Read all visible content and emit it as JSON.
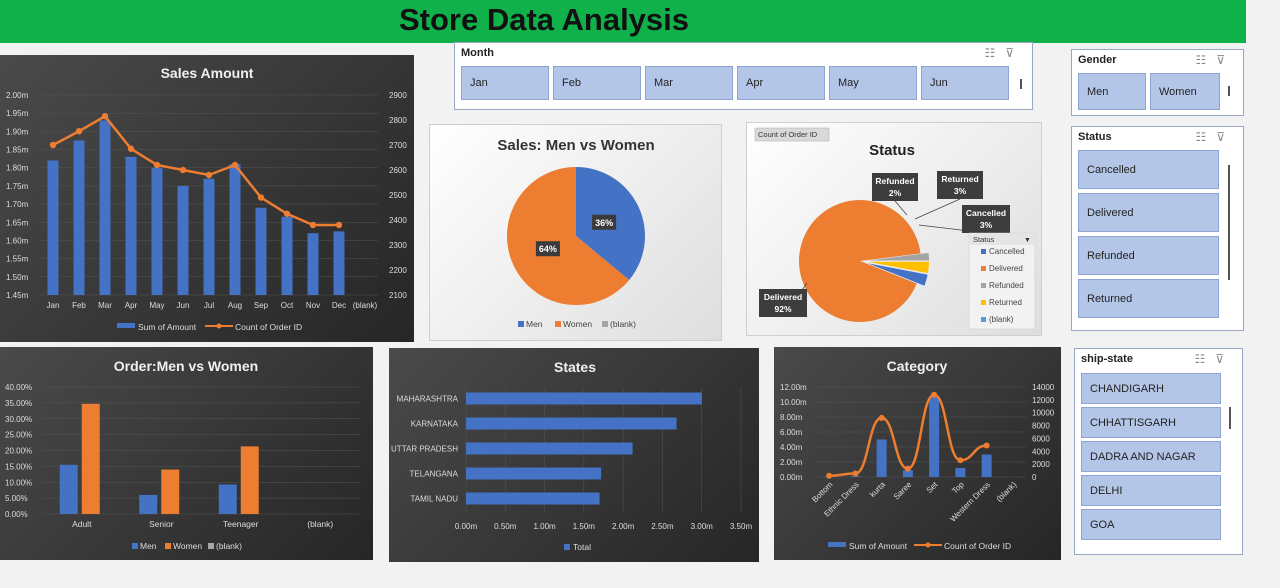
{
  "header": {
    "title": "Store Data Analysis"
  },
  "slicers": {
    "month": {
      "title": "Month",
      "items": [
        "Jan",
        "Feb",
        "Mar",
        "Apr",
        "May",
        "Jun"
      ]
    },
    "gender": {
      "title": "Gender",
      "items": [
        "Men",
        "Women"
      ]
    },
    "status": {
      "title": "Status",
      "items": [
        "Cancelled",
        "Delivered",
        "Refunded",
        "Returned"
      ]
    },
    "ship_state": {
      "title": "ship-state",
      "items": [
        "CHANDIGARH",
        "CHHATTISGARH",
        "DADRA AND NAGAR",
        "DELHI",
        "GOA"
      ]
    }
  },
  "icons": {
    "multiselect": "multi-select-icon",
    "clear_filter": "clear-filter-icon"
  },
  "colors": {
    "blue": "#4472c4",
    "orange": "#ed7d31",
    "gray": "#a5a5a5",
    "yellow": "#ffc000",
    "lightblue": "#5b9bd5",
    "green": "#10b14b"
  },
  "chart_data": [
    {
      "id": "sales_amount",
      "type": "bar+line",
      "title": "Sales Amount",
      "categories": [
        "Jan",
        "Feb",
        "Mar",
        "Apr",
        "May",
        "Jun",
        "Jul",
        "Aug",
        "Sep",
        "Oct",
        "Nov",
        "Dec",
        "(blank)"
      ],
      "series": [
        {
          "name": "Sum of Amount",
          "type": "bar",
          "axis": "left",
          "values": [
            1.82,
            1.875,
            1.93,
            1.83,
            1.8,
            1.75,
            1.77,
            1.81,
            1.69,
            1.665,
            1.62,
            1.625,
            null
          ]
        },
        {
          "name": "Count of Order ID",
          "type": "line",
          "axis": "right",
          "values": [
            2700,
            2755,
            2815,
            2685,
            2620,
            2600,
            2580,
            2620,
            2490,
            2425,
            2380,
            2380,
            null
          ]
        }
      ],
      "left_axis": {
        "min": 1.45,
        "max": 2.0,
        "ticks": [
          "2.00m",
          "1.95m",
          "1.90m",
          "1.85m",
          "1.80m",
          "1.75m",
          "1.70m",
          "1.65m",
          "1.60m",
          "1.55m",
          "1.50m",
          "1.45m"
        ]
      },
      "right_axis": {
        "min": 2100,
        "max": 2900,
        "ticks": [
          "2900",
          "2800",
          "2700",
          "2600",
          "2500",
          "2400",
          "2300",
          "2200",
          "2100"
        ]
      },
      "legend": "bottom"
    },
    {
      "id": "sales_men_women",
      "type": "pie",
      "title": "Sales: Men vs Women",
      "slices": [
        {
          "name": "Men",
          "value": 36,
          "label": "36%"
        },
        {
          "name": "Women",
          "value": 64,
          "label": "64%"
        }
      ],
      "legend_entries": [
        "Men",
        "Women",
        "(blank)"
      ],
      "legend": "bottom"
    },
    {
      "id": "status",
      "type": "pie",
      "title": "Status",
      "field_button": "Count of Order ID",
      "slices": [
        {
          "name": "Cancelled",
          "value": 3,
          "label": "Cancelled",
          "pct": "3%"
        },
        {
          "name": "Delivered",
          "value": 92,
          "label": "Delivered",
          "pct": "92%"
        },
        {
          "name": "Refunded",
          "value": 2,
          "label": "Refunded",
          "pct": "2%"
        },
        {
          "name": "Returned",
          "value": 3,
          "label": "Returned",
          "pct": "3%"
        }
      ],
      "legend_title": "Status",
      "legend_entries": [
        "Cancelled",
        "Delivered",
        "Refunded",
        "Returned",
        "(blank)"
      ],
      "legend": "right"
    },
    {
      "id": "order_men_women",
      "type": "bar",
      "title": "Order:Men vs Women",
      "categories": [
        "Adult",
        "Senior",
        "Teenager",
        "(blank)"
      ],
      "series": [
        {
          "name": "Men",
          "values": [
            15.5,
            6.0,
            9.3,
            null
          ]
        },
        {
          "name": "Women",
          "values": [
            34.7,
            14.0,
            21.3,
            null
          ]
        }
      ],
      "legend_entries": [
        "Men",
        "Women",
        "(blank)"
      ],
      "ylim": [
        0,
        40
      ],
      "ticks": [
        "40.00%",
        "35.00%",
        "30.00%",
        "25.00%",
        "20.00%",
        "15.00%",
        "10.00%",
        "5.00%",
        "0.00%"
      ],
      "legend": "bottom"
    },
    {
      "id": "states",
      "type": "bar",
      "orientation": "horizontal",
      "title": "States",
      "categories": [
        "MAHARASHTRA",
        "KARNATAKA",
        "UTTAR PRADESH",
        "TELANGANA",
        "TAMIL NADU"
      ],
      "series": [
        {
          "name": "Total",
          "values": [
            3.0,
            2.68,
            2.12,
            1.72,
            1.7
          ]
        }
      ],
      "xlim": [
        0,
        3.5
      ],
      "ticks": [
        "0.00m",
        "0.50m",
        "1.00m",
        "1.50m",
        "2.00m",
        "2.50m",
        "3.00m",
        "3.50m"
      ],
      "legend": "bottom"
    },
    {
      "id": "category",
      "type": "bar+line",
      "title": "Category",
      "categories": [
        "Bottom",
        "Ethnic Dress",
        "kurta",
        "Saree",
        "Set",
        "Top",
        "Western Dress",
        "(blank)"
      ],
      "series": [
        {
          "name": "Sum of Amount",
          "type": "bar",
          "axis": "left",
          "values": [
            0.05,
            0.1,
            5.0,
            0.9,
            10.7,
            1.2,
            3.0,
            null
          ]
        },
        {
          "name": "Count of Order ID",
          "type": "line",
          "axis": "right",
          "values": [
            200,
            550,
            9200,
            1300,
            12800,
            2600,
            4900,
            null
          ]
        }
      ],
      "left_axis": {
        "min": 0,
        "max": 12,
        "ticks": [
          "12.00m",
          "10.00m",
          "8.00m",
          "6.00m",
          "4.00m",
          "2.00m",
          "0.00m"
        ]
      },
      "right_axis": {
        "min": 0,
        "max": 14000,
        "ticks": [
          "14000",
          "12000",
          "10000",
          "8000",
          "6000",
          "4000",
          "2000",
          "0"
        ]
      },
      "legend": "bottom"
    }
  ]
}
